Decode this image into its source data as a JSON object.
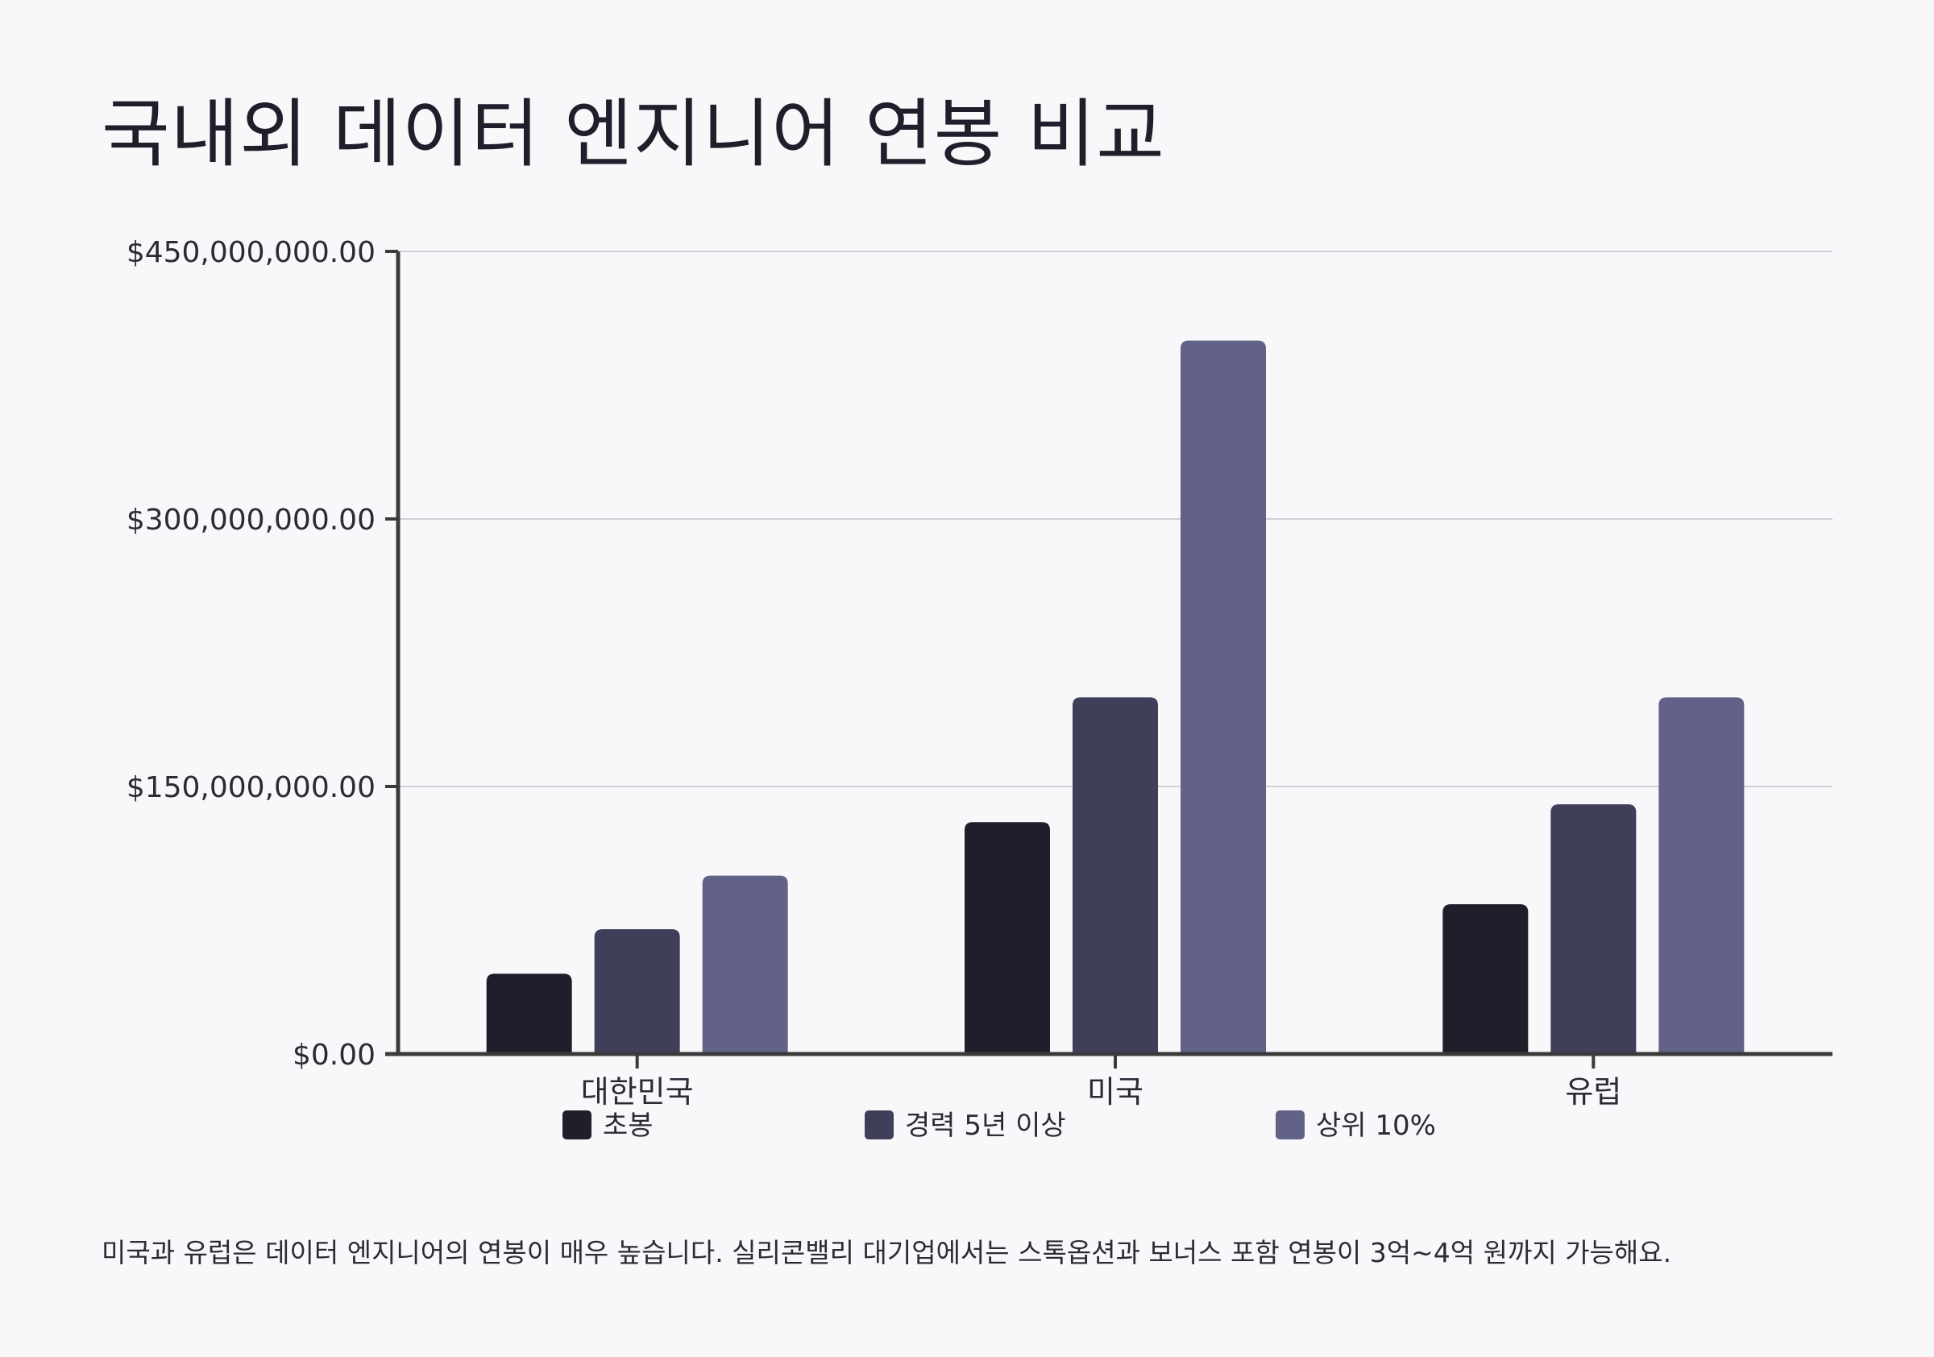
{
  "title": "국내외 데이터 엔지니어 연봉 비교",
  "caption": "미국과 유럽은 데이터 엔지니어의 연봉이 매우 높습니다. 실리콘밸리 대기업에서는 스톡옵션과 보너스 포함 연봉이 3억~4억 원까지 가능해요.",
  "colors": {
    "background": "#f8f8fb",
    "axis": "#3b3b3b",
    "grid": "#d0d0d6",
    "series": [
      "#1f1f2c",
      "#3f3f5a",
      "#626289"
    ]
  },
  "chart_data": {
    "type": "bar",
    "categories": [
      "대한민국",
      "미국",
      "유럽"
    ],
    "series": [
      {
        "name": "초봉",
        "values": [
          45000000,
          130000000,
          84000000
        ]
      },
      {
        "name": "경력 5년 이상",
        "values": [
          70000000,
          200000000,
          140000000
        ]
      },
      {
        "name": "상위 10%",
        "values": [
          100000000,
          400000000,
          200000000
        ]
      }
    ],
    "ylim": [
      0,
      450000000
    ],
    "yticks": [
      0,
      150000000,
      300000000,
      450000000
    ],
    "ytick_labels": [
      "$0.00",
      "$150,000,000.00",
      "$300,000,000.00",
      "$450,000,000.00"
    ],
    "grid": true,
    "legend_position": "bottom"
  }
}
